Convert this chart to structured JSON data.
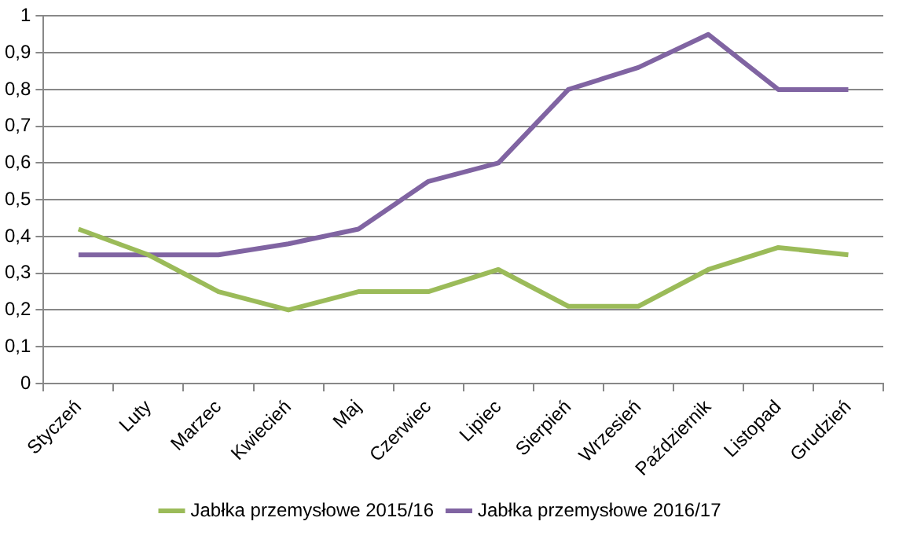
{
  "chart_data": {
    "type": "line",
    "categories": [
      "Styczeń",
      "Luty",
      "Marzec",
      "Kwiecień",
      "Maj",
      "Czerwiec",
      "Lipiec",
      "Sierpień",
      "Wrzesień",
      "Październik",
      "Listopad",
      "Grudzień"
    ],
    "series": [
      {
        "name": "Jabłka przemysłowe 2015/16",
        "color": "#9bbb59",
        "values": [
          0.42,
          0.35,
          0.25,
          0.2,
          0.25,
          0.25,
          0.31,
          0.21,
          0.21,
          0.31,
          0.37,
          0.35
        ]
      },
      {
        "name": "Jabłka przemysłowe 2016/17",
        "color": "#8064a2",
        "values": [
          0.35,
          0.35,
          0.35,
          0.38,
          0.42,
          0.55,
          0.6,
          0.8,
          0.86,
          0.95,
          0.8,
          0.8
        ]
      }
    ],
    "ylim": [
      0,
      1
    ],
    "yticks": [
      0,
      {
        "value": 0.1,
        "label": "0,1"
      },
      {
        "value": 0.2,
        "label": "0,2"
      },
      {
        "value": 0.3,
        "label": "0,3"
      },
      {
        "value": 0.4,
        "label": "0,4"
      },
      {
        "value": 0.5,
        "label": "0,5"
      },
      {
        "value": 0.6,
        "label": "0,6"
      },
      {
        "value": 0.7,
        "label": "0,7"
      },
      {
        "value": 0.8,
        "label": "0,8"
      },
      {
        "value": 0.9,
        "label": "0,9"
      },
      1
    ],
    "grid": "y",
    "legend": "bottom",
    "marker": "none",
    "line_style": "solid"
  }
}
